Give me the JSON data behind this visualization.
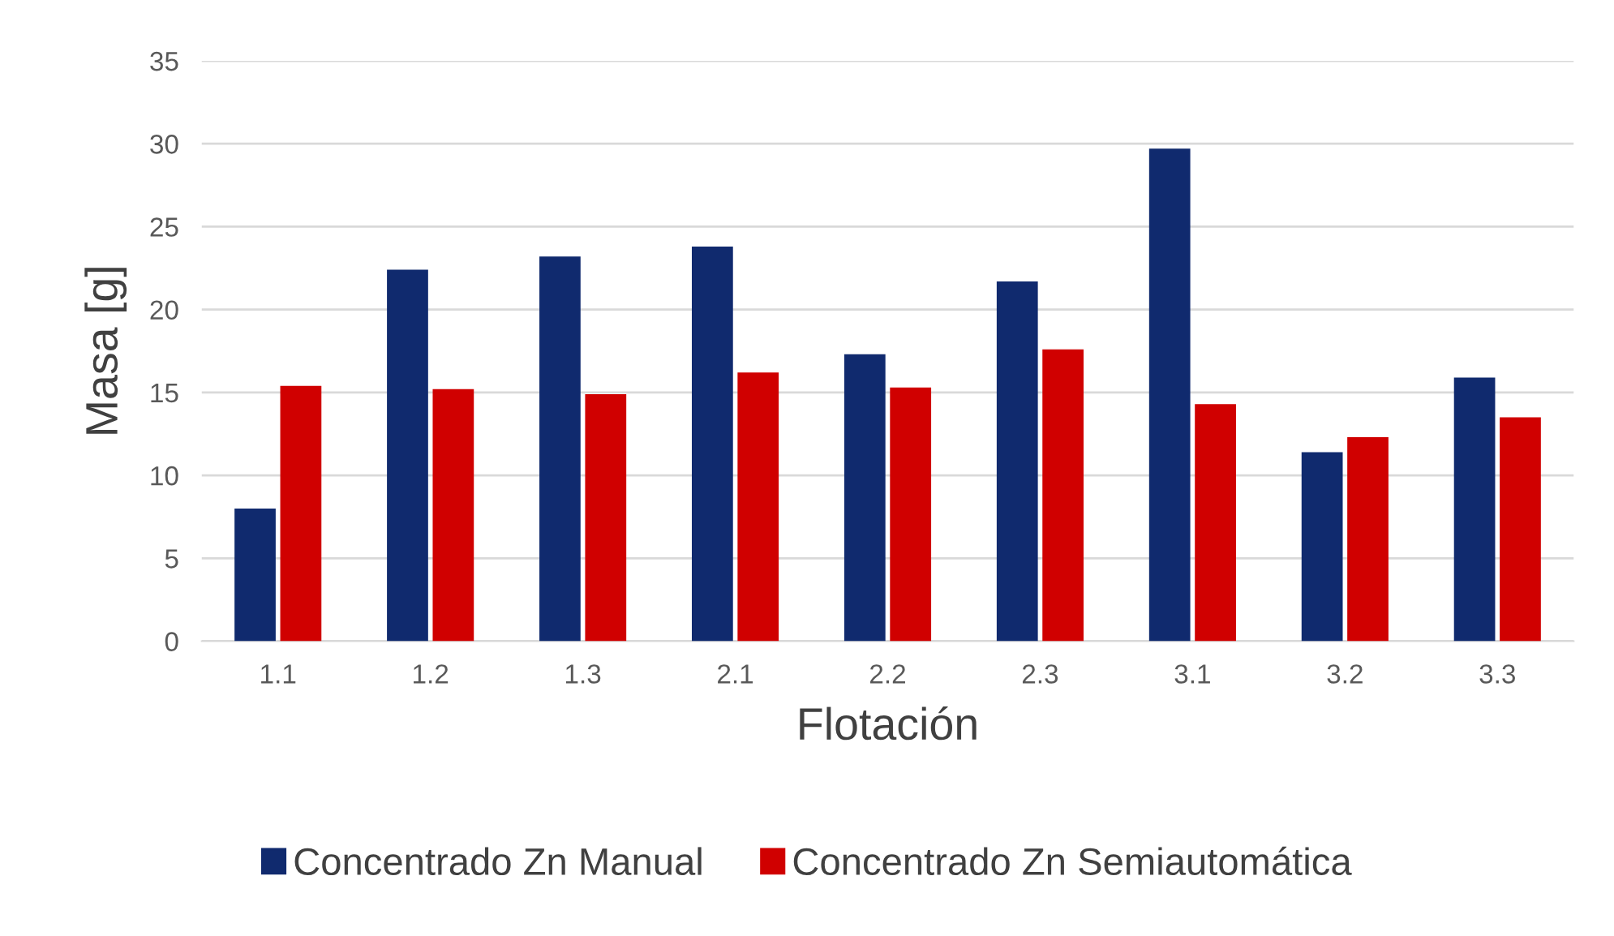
{
  "chart_data": {
    "type": "bar",
    "xlabel": "Flotación",
    "ylabel": "Masa [g]",
    "categories": [
      "1.1",
      "1.2",
      "1.3",
      "2.1",
      "2.2",
      "2.3",
      "3.1",
      "3.2",
      "3.3"
    ],
    "series": [
      {
        "name": "Concentrado Zn Manual",
        "color": "#102a6e",
        "values": [
          8.0,
          22.4,
          23.2,
          23.8,
          17.3,
          21.7,
          29.7,
          11.4,
          15.9
        ]
      },
      {
        "name": "Concentrado Zn Semiautomática",
        "color": "#d00000",
        "values": [
          15.4,
          15.2,
          14.9,
          16.2,
          15.3,
          17.6,
          14.3,
          12.3,
          13.5
        ]
      }
    ],
    "ylim": [
      0,
      35
    ],
    "yticks": [
      0,
      5,
      10,
      15,
      20,
      25,
      30,
      35
    ],
    "grid": "y",
    "legend": "bottom"
  }
}
